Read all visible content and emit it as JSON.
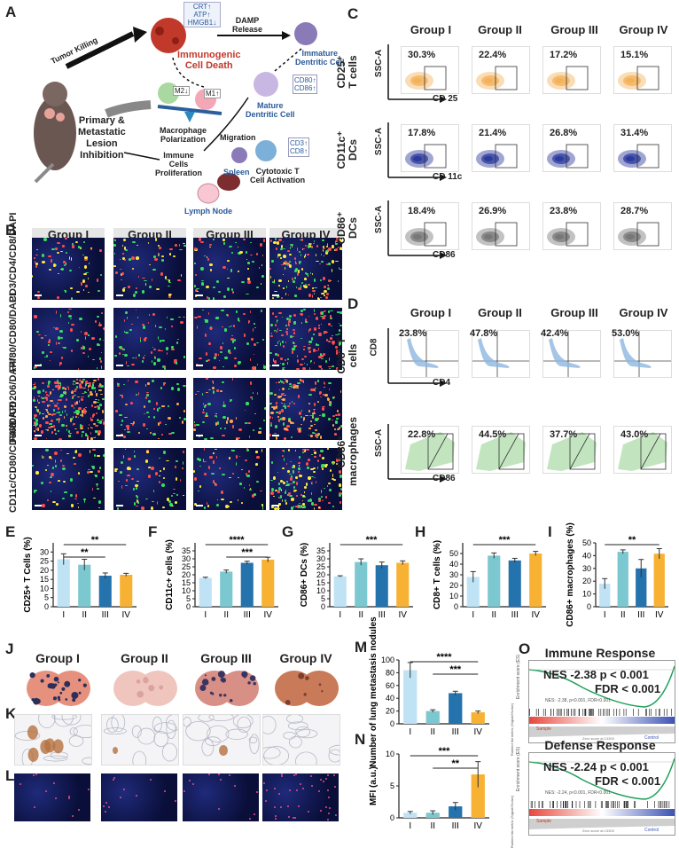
{
  "panels": {
    "A": "A",
    "B": "B",
    "C": "C",
    "D": "D",
    "E": "E",
    "F": "F",
    "G": "G",
    "H": "H",
    "I": "I",
    "J": "J",
    "K": "K",
    "L": "L",
    "M": "M",
    "N": "N",
    "O": "O"
  },
  "groups": [
    "Group I",
    "Group II",
    "Group III",
    "Group IV"
  ],
  "schematic": {
    "tumor_killing": "Tumor Killing",
    "crt": "CRT↑",
    "atp": "ATP↑",
    "hmgb1": "HMGB1↓",
    "damp": "DAMP",
    "release": "Release",
    "icd1": "Immunogenic",
    "icd2": "Cell Death",
    "immature1": "Immature",
    "immature2": "Dentritic Cell",
    "m2": "M2↓",
    "m1": "M1↑",
    "cd80": "CD80↑",
    "cd86": "CD86↑",
    "mature1": "Mature",
    "mature2": "Dentritic Cell",
    "macro1": "Macrophage",
    "macro2": "Polarization",
    "migration": "Migration",
    "cd3": "CD3↑",
    "cd8": "CD8↑",
    "spleen": "Spleen",
    "immune1": "Immune",
    "immune2": "Cells",
    "immune3": "Proliferation",
    "ctl1": "Cytotoxic T",
    "ctl2": "Cell Activation",
    "lymph": "Lymph Node",
    "lesion1": "Primary &",
    "lesion2": "Metastatic",
    "lesion3": "Lesion",
    "lesion4": "Inhibition"
  },
  "B_rows": [
    "CD3/CD4/CD8/DAPI",
    "F4/80/CD80/DAPI",
    "F4/80/CD206/DAPI",
    "CD11c/CD80/CD86/DAPI"
  ],
  "C": {
    "rows": [
      {
        "label1": "CD25⁺",
        "label2": "T cells",
        "y": "SSC-A",
        "x": "CD 25",
        "values": [
          "30.3%",
          "22.4%",
          "17.2%",
          "15.1%"
        ],
        "color": "#f3b25a"
      },
      {
        "label1": "CD11c⁺",
        "label2": "DCs",
        "y": "SSC-A",
        "x": "CD 11c",
        "values": [
          "17.8%",
          "21.4%",
          "26.8%",
          "31.4%"
        ],
        "color": "#2b3a9c"
      },
      {
        "label1": "CD86⁺",
        "label2": "DCs",
        "y": "SSC-A",
        "x": "CD86",
        "values": [
          "18.4%",
          "26.9%",
          "23.8%",
          "28.7%"
        ],
        "color": "#777777"
      }
    ]
  },
  "D": {
    "rows": [
      {
        "label1": "CD8⁺ T",
        "label2": "cells",
        "y": "CD8",
        "x": "CD4",
        "values": [
          "23.8%",
          "47.8%",
          "42.4%",
          "53.0%"
        ],
        "color": "#8fb7e0"
      },
      {
        "label1": "CD86⁺",
        "label2": "macrophages",
        "y": "SSC-A",
        "x": "CD86",
        "values": [
          "22.8%",
          "44.5%",
          "37.7%",
          "43.0%"
        ],
        "color": "#8fcf8a"
      }
    ]
  },
  "chart_data": [
    {
      "panel": "E",
      "type": "bar",
      "categories": [
        "I",
        "II",
        "III",
        "IV"
      ],
      "values": [
        26,
        23,
        17,
        17.5
      ],
      "errors": [
        3,
        3,
        1.5,
        0.8
      ],
      "ylabel": "CD25+ T Cells (%)",
      "ylim": [
        0,
        35
      ],
      "yticks": [
        "0",
        "5",
        "10",
        "15",
        "20",
        "25",
        "30"
      ],
      "sig": [
        "**",
        "**"
      ]
    },
    {
      "panel": "F",
      "type": "bar",
      "categories": [
        "I",
        "II",
        "III",
        "IV"
      ],
      "values": [
        18,
        22,
        27.5,
        29.5
      ],
      "errors": [
        0.5,
        1,
        1,
        1.5
      ],
      "ylabel": "CD11c+ cells (%)",
      "ylim": [
        0,
        40
      ],
      "yticks": [
        "0",
        "5",
        "10",
        "15",
        "20",
        "25",
        "30",
        "35"
      ],
      "sig": [
        "****",
        "***"
      ]
    },
    {
      "panel": "G",
      "type": "bar",
      "categories": [
        "I",
        "II",
        "III",
        "IV"
      ],
      "values": [
        19,
        28,
        26,
        27.5
      ],
      "errors": [
        0.4,
        2,
        2,
        1.2
      ],
      "ylabel": "CD86+ DCs (%)",
      "ylim": [
        0,
        40
      ],
      "yticks": [
        "0",
        "5",
        "10",
        "15",
        "20",
        "25",
        "30",
        "35"
      ],
      "sig": [
        "***"
      ]
    },
    {
      "panel": "H",
      "type": "bar",
      "categories": [
        "I",
        "II",
        "III",
        "IV"
      ],
      "values": [
        28,
        48,
        43.5,
        50
      ],
      "errors": [
        5,
        2.5,
        2,
        2
      ],
      "ylabel": "CD8+ T cells (%)",
      "ylim": [
        0,
        60
      ],
      "yticks": [
        "0",
        "10",
        "20",
        "30",
        "40",
        "50"
      ],
      "sig": [
        "***"
      ]
    },
    {
      "panel": "I",
      "type": "bar",
      "categories": [
        "I",
        "II",
        "III",
        "IV"
      ],
      "values": [
        18,
        43,
        30,
        41.5
      ],
      "errors": [
        4,
        1.5,
        7,
        4
      ],
      "ylabel": "CD86+ macrophages (%)",
      "ylim": [
        0,
        50
      ],
      "yticks": [
        "0",
        "10",
        "20",
        "30",
        "40",
        "50"
      ],
      "sig": [
        "**"
      ]
    },
    {
      "panel": "M",
      "type": "bar",
      "categories": [
        "I",
        "II",
        "III",
        "IV"
      ],
      "values": [
        84,
        20,
        48,
        18
      ],
      "errors": [
        12,
        2,
        3,
        2
      ],
      "ylabel": "Number of lung metastasis nodules",
      "ylim": [
        0,
        100
      ],
      "yticks": [
        "0",
        "20",
        "40",
        "60",
        "80",
        "100"
      ],
      "sig": [
        "****",
        "***"
      ]
    },
    {
      "panel": "N",
      "type": "bar",
      "categories": [
        "I",
        "II",
        "III",
        "IV"
      ],
      "values": [
        0.8,
        0.8,
        1.8,
        6.8
      ],
      "errors": [
        0.2,
        0.3,
        0.6,
        2
      ],
      "ylabel": "MFI (a.u.)",
      "ylim": [
        0,
        10
      ],
      "yticks": [
        "0",
        "5",
        "10"
      ],
      "sig": [
        "***",
        "**"
      ]
    }
  ],
  "bar_colors": [
    "#bfe3f5",
    "#7cc8d0",
    "#2573ad",
    "#f7b234"
  ],
  "O": [
    {
      "title": "Immune Response",
      "nes": "NES -2.38 p < 0.001",
      "fdr": "FDR < 0.001",
      "small": "NES: -2.38, p<0.001, FDR<0.001",
      "sample": "Sample",
      "control": "Control",
      "ylab1": "Enrichment score (ES)",
      "ylab2": "Ranked list metric (Signal2Noise)",
      "xlab": "Zero score at 13300"
    },
    {
      "title": "Defense Response",
      "nes": "NES -2.24 p < 0.001",
      "fdr": "FDR < 0.001",
      "small": "NES: -2.24, p<0.001, FDR<0.001",
      "sample": "Sample",
      "control": "Control",
      "ylab1": "Enrichment score (ES)",
      "ylab2": "Ranked list metric (Signal2Noise)",
      "xlab": "Zero score at 13300"
    }
  ]
}
